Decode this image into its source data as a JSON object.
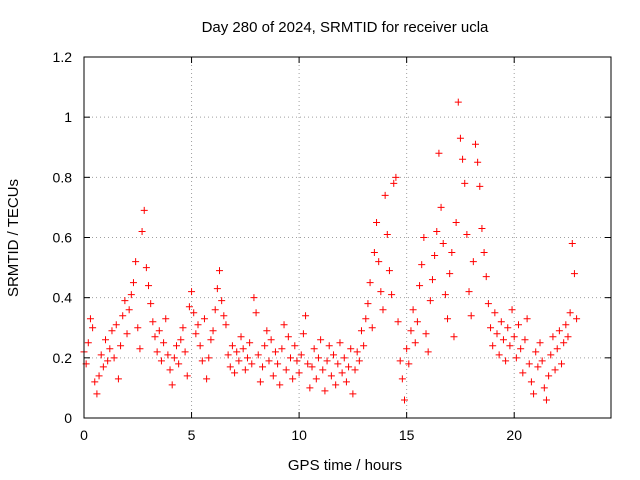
{
  "chart_data": {
    "type": "scatter",
    "title": "Day 280 of 2024, SRMTID for receiver ucla",
    "xlabel": "GPS time / hours",
    "ylabel": "SRMTID / TECUs",
    "xlim": [
      0,
      24.5
    ],
    "ylim": [
      0,
      1.2
    ],
    "x_ticks": [
      0,
      5,
      10,
      15,
      20
    ],
    "y_ticks": [
      0,
      0.2,
      0.4,
      0.6,
      0.8,
      1,
      1.2
    ],
    "x_tick_labels": [
      "0",
      "5",
      "10",
      "15",
      "20"
    ],
    "y_tick_labels": [
      "0",
      "0.2",
      "0.4",
      "0.6",
      "0.8",
      "1",
      "1.2"
    ],
    "grid": true,
    "marker": "+",
    "series": [
      {
        "name": "SRMTID",
        "color": "#ff0000",
        "points": [
          [
            0.0,
            0.22
          ],
          [
            0.1,
            0.18
          ],
          [
            0.2,
            0.25
          ],
          [
            0.3,
            0.33
          ],
          [
            0.4,
            0.3
          ],
          [
            0.5,
            0.12
          ],
          [
            0.6,
            0.08
          ],
          [
            0.7,
            0.14
          ],
          [
            0.8,
            0.21
          ],
          [
            0.9,
            0.17
          ],
          [
            1.0,
            0.26
          ],
          [
            1.1,
            0.19
          ],
          [
            1.2,
            0.23
          ],
          [
            1.3,
            0.29
          ],
          [
            1.4,
            0.2
          ],
          [
            1.5,
            0.31
          ],
          [
            1.6,
            0.13
          ],
          [
            1.7,
            0.24
          ],
          [
            1.8,
            0.34
          ],
          [
            1.9,
            0.39
          ],
          [
            2.0,
            0.28
          ],
          [
            2.1,
            0.36
          ],
          [
            2.2,
            0.41
          ],
          [
            2.3,
            0.45
          ],
          [
            2.4,
            0.52
          ],
          [
            2.5,
            0.3
          ],
          [
            2.6,
            0.23
          ],
          [
            2.7,
            0.62
          ],
          [
            2.8,
            0.69
          ],
          [
            2.9,
            0.5
          ],
          [
            3.0,
            0.44
          ],
          [
            3.1,
            0.38
          ],
          [
            3.2,
            0.32
          ],
          [
            3.3,
            0.27
          ],
          [
            3.4,
            0.22
          ],
          [
            3.5,
            0.29
          ],
          [
            3.6,
            0.19
          ],
          [
            3.7,
            0.25
          ],
          [
            3.8,
            0.33
          ],
          [
            3.9,
            0.21
          ],
          [
            4.0,
            0.16
          ],
          [
            4.1,
            0.11
          ],
          [
            4.2,
            0.2
          ],
          [
            4.3,
            0.24
          ],
          [
            4.4,
            0.18
          ],
          [
            4.5,
            0.26
          ],
          [
            4.6,
            0.3
          ],
          [
            4.7,
            0.22
          ],
          [
            4.8,
            0.14
          ],
          [
            4.9,
            0.37
          ],
          [
            5.0,
            0.42
          ],
          [
            5.1,
            0.35
          ],
          [
            5.2,
            0.28
          ],
          [
            5.3,
            0.31
          ],
          [
            5.4,
            0.24
          ],
          [
            5.5,
            0.19
          ],
          [
            5.6,
            0.33
          ],
          [
            5.7,
            0.13
          ],
          [
            5.8,
            0.2
          ],
          [
            5.9,
            0.26
          ],
          [
            6.0,
            0.29
          ],
          [
            6.1,
            0.36
          ],
          [
            6.2,
            0.43
          ],
          [
            6.3,
            0.49
          ],
          [
            6.4,
            0.39
          ],
          [
            6.5,
            0.34
          ],
          [
            6.6,
            0.31
          ],
          [
            6.7,
            0.21
          ],
          [
            6.8,
            0.17
          ],
          [
            6.9,
            0.24
          ],
          [
            7.0,
            0.15
          ],
          [
            7.1,
            0.22
          ],
          [
            7.2,
            0.19
          ],
          [
            7.3,
            0.27
          ],
          [
            7.4,
            0.23
          ],
          [
            7.5,
            0.16
          ],
          [
            7.6,
            0.2
          ],
          [
            7.7,
            0.25
          ],
          [
            7.8,
            0.18
          ],
          [
            7.9,
            0.4
          ],
          [
            8.0,
            0.35
          ],
          [
            8.1,
            0.21
          ],
          [
            8.2,
            0.12
          ],
          [
            8.3,
            0.17
          ],
          [
            8.4,
            0.24
          ],
          [
            8.5,
            0.29
          ],
          [
            8.6,
            0.19
          ],
          [
            8.7,
            0.26
          ],
          [
            8.8,
            0.14
          ],
          [
            8.9,
            0.22
          ],
          [
            9.0,
            0.18
          ],
          [
            9.1,
            0.11
          ],
          [
            9.2,
            0.23
          ],
          [
            9.3,
            0.31
          ],
          [
            9.4,
            0.16
          ],
          [
            9.5,
            0.27
          ],
          [
            9.6,
            0.2
          ],
          [
            9.7,
            0.13
          ],
          [
            9.8,
            0.24
          ],
          [
            9.9,
            0.19
          ],
          [
            10.0,
            0.15
          ],
          [
            10.1,
            0.21
          ],
          [
            10.2,
            0.28
          ],
          [
            10.3,
            0.34
          ],
          [
            10.4,
            0.18
          ],
          [
            10.5,
            0.1
          ],
          [
            10.6,
            0.17
          ],
          [
            10.7,
            0.23
          ],
          [
            10.8,
            0.13
          ],
          [
            10.9,
            0.2
          ],
          [
            11.0,
            0.26
          ],
          [
            11.1,
            0.16
          ],
          [
            11.2,
            0.09
          ],
          [
            11.3,
            0.19
          ],
          [
            11.4,
            0.24
          ],
          [
            11.5,
            0.14
          ],
          [
            11.6,
            0.21
          ],
          [
            11.7,
            0.11
          ],
          [
            11.8,
            0.18
          ],
          [
            11.9,
            0.25
          ],
          [
            12.0,
            0.15
          ],
          [
            12.1,
            0.2
          ],
          [
            12.2,
            0.12
          ],
          [
            12.3,
            0.17
          ],
          [
            12.4,
            0.23
          ],
          [
            12.5,
            0.08
          ],
          [
            12.6,
            0.16
          ],
          [
            12.7,
            0.22
          ],
          [
            12.8,
            0.19
          ],
          [
            12.9,
            0.29
          ],
          [
            13.0,
            0.24
          ],
          [
            13.1,
            0.33
          ],
          [
            13.2,
            0.38
          ],
          [
            13.3,
            0.45
          ],
          [
            13.4,
            0.3
          ],
          [
            13.5,
            0.55
          ],
          [
            13.6,
            0.65
          ],
          [
            13.7,
            0.52
          ],
          [
            13.8,
            0.42
          ],
          [
            13.9,
            0.36
          ],
          [
            14.0,
            0.74
          ],
          [
            14.1,
            0.61
          ],
          [
            14.2,
            0.49
          ],
          [
            14.3,
            0.41
          ],
          [
            14.4,
            0.78
          ],
          [
            14.5,
            0.8
          ],
          [
            14.6,
            0.32
          ],
          [
            14.7,
            0.19
          ],
          [
            14.8,
            0.13
          ],
          [
            14.9,
            0.06
          ],
          [
            15.0,
            0.23
          ],
          [
            15.1,
            0.18
          ],
          [
            15.2,
            0.29
          ],
          [
            15.3,
            0.36
          ],
          [
            15.4,
            0.25
          ],
          [
            15.5,
            0.32
          ],
          [
            15.6,
            0.44
          ],
          [
            15.7,
            0.51
          ],
          [
            15.8,
            0.6
          ],
          [
            15.9,
            0.28
          ],
          [
            16.0,
            0.22
          ],
          [
            16.1,
            0.39
          ],
          [
            16.2,
            0.46
          ],
          [
            16.3,
            0.54
          ],
          [
            16.4,
            0.62
          ],
          [
            16.5,
            0.88
          ],
          [
            16.6,
            0.7
          ],
          [
            16.7,
            0.58
          ],
          [
            16.8,
            0.41
          ],
          [
            16.9,
            0.33
          ],
          [
            17.0,
            0.48
          ],
          [
            17.1,
            0.55
          ],
          [
            17.2,
            0.27
          ],
          [
            17.3,
            0.65
          ],
          [
            17.4,
            1.05
          ],
          [
            17.5,
            0.93
          ],
          [
            17.6,
            0.86
          ],
          [
            17.7,
            0.78
          ],
          [
            17.8,
            0.61
          ],
          [
            17.9,
            0.42
          ],
          [
            18.0,
            0.34
          ],
          [
            18.1,
            0.52
          ],
          [
            18.2,
            0.91
          ],
          [
            18.3,
            0.85
          ],
          [
            18.4,
            0.77
          ],
          [
            18.5,
            0.63
          ],
          [
            18.6,
            0.55
          ],
          [
            18.7,
            0.47
          ],
          [
            18.8,
            0.38
          ],
          [
            18.9,
            0.3
          ],
          [
            19.0,
            0.24
          ],
          [
            19.1,
            0.35
          ],
          [
            19.2,
            0.28
          ],
          [
            19.3,
            0.21
          ],
          [
            19.4,
            0.32
          ],
          [
            19.5,
            0.26
          ],
          [
            19.6,
            0.19
          ],
          [
            19.7,
            0.3
          ],
          [
            19.8,
            0.24
          ],
          [
            19.9,
            0.36
          ],
          [
            20.0,
            0.27
          ],
          [
            20.1,
            0.2
          ],
          [
            20.2,
            0.31
          ],
          [
            20.3,
            0.23
          ],
          [
            20.4,
            0.15
          ],
          [
            20.5,
            0.26
          ],
          [
            20.6,
            0.33
          ],
          [
            20.7,
            0.18
          ],
          [
            20.8,
            0.12
          ],
          [
            20.9,
            0.08
          ],
          [
            21.0,
            0.22
          ],
          [
            21.1,
            0.17
          ],
          [
            21.2,
            0.25
          ],
          [
            21.3,
            0.19
          ],
          [
            21.4,
            0.1
          ],
          [
            21.5,
            0.06
          ],
          [
            21.6,
            0.14
          ],
          [
            21.7,
            0.21
          ],
          [
            21.8,
            0.27
          ],
          [
            21.9,
            0.16
          ],
          [
            22.0,
            0.23
          ],
          [
            22.1,
            0.29
          ],
          [
            22.2,
            0.18
          ],
          [
            22.3,
            0.25
          ],
          [
            22.4,
            0.31
          ],
          [
            22.5,
            0.27
          ],
          [
            22.6,
            0.35
          ],
          [
            22.7,
            0.58
          ],
          [
            22.8,
            0.48
          ],
          [
            22.9,
            0.33
          ]
        ]
      }
    ]
  }
}
